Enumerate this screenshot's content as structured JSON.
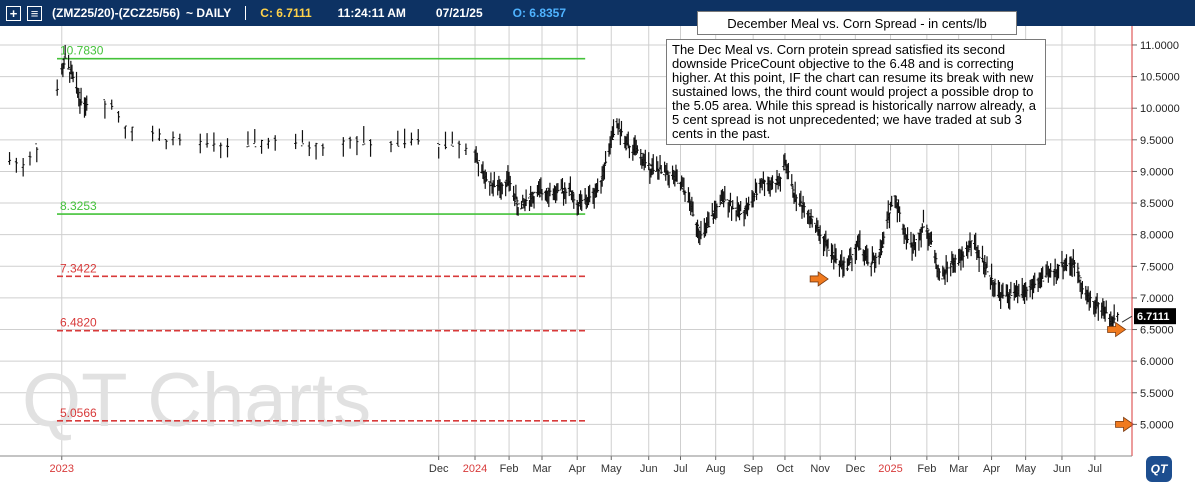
{
  "toolbar": {
    "add_icon": "plus-icon",
    "menu_icon": "menu-icon",
    "symbol": "(ZMZ25/20)-(ZCZ25/56)",
    "period": "~ DAILY",
    "close_label": "C: 6.7111",
    "time": "11:24:11 AM",
    "date": "07/21/25",
    "open_label": "O: 6.8357"
  },
  "annotation": {
    "title": "December Meal vs. Corn Spread - in cents/lb",
    "text": "The Dec Meal vs. Corn protein spread satisfied its second downside PriceCount objective to the 6.48 and is correcting higher.  At this point, IF the chart can resume its break with new sustained lows, the third count would project a possible drop to the 5.05 area.  While this spread is historically narrow already, a 5 cent spread is not unprecedented; we have traded at sub 3 cents in the past."
  },
  "watermark": "QT Charts",
  "logo_text": "QT",
  "colors": {
    "toolbar_bg": "#0d3263",
    "close": "#ffd24a",
    "open": "#4fb3ff",
    "green_level": "#44c23a",
    "red_level": "#d83a3a",
    "arrow": "#f07a1e",
    "last_price_bg": "#000000"
  },
  "chart_data": {
    "type": "bar",
    "subtype": "ohlc",
    "ylim": [
      4.5,
      11.3
    ],
    "y_ticks": [
      "11.0000",
      "10.5000",
      "10.0000",
      "9.5000",
      "9.0000",
      "8.5000",
      "8.0000",
      "7.5000",
      "7.0000",
      "6.5000",
      "6.0000",
      "5.5000",
      "5.0000"
    ],
    "x_ticks": [
      {
        "label": "2023",
        "date": "2023-01-03",
        "year": true
      },
      {
        "label": "Dec",
        "date": "2023-12-01",
        "year": false
      },
      {
        "label": "2024",
        "date": "2024-01-02",
        "year": true
      },
      {
        "label": "Feb",
        "date": "2024-02-01",
        "year": false
      },
      {
        "label": "Mar",
        "date": "2024-03-01",
        "year": false
      },
      {
        "label": "Apr",
        "date": "2024-04-01",
        "year": false
      },
      {
        "label": "May",
        "date": "2024-05-01",
        "year": false
      },
      {
        "label": "Jun",
        "date": "2024-06-03",
        "year": false
      },
      {
        "label": "Jul",
        "date": "2024-07-01",
        "year": false
      },
      {
        "label": "Aug",
        "date": "2024-08-01",
        "year": false
      },
      {
        "label": "Sep",
        "date": "2024-09-03",
        "year": false
      },
      {
        "label": "Oct",
        "date": "2024-10-01",
        "year": false
      },
      {
        "label": "Nov",
        "date": "2024-11-01",
        "year": false
      },
      {
        "label": "Dec",
        "date": "2024-12-02",
        "year": false
      },
      {
        "label": "2025",
        "date": "2025-01-02",
        "year": true
      },
      {
        "label": "Feb",
        "date": "2025-02-03",
        "year": false
      },
      {
        "label": "Mar",
        "date": "2025-03-03",
        "year": false
      },
      {
        "label": "Apr",
        "date": "2025-04-01",
        "year": false
      },
      {
        "label": "May",
        "date": "2025-05-01",
        "year": false
      },
      {
        "label": "Jun",
        "date": "2025-06-02",
        "year": false
      },
      {
        "label": "Jul",
        "date": "2025-07-01",
        "year": false
      }
    ],
    "levels": [
      {
        "label": "10.7830",
        "value": 10.783,
        "color": "green",
        "style": "solid",
        "end_date": "2024-04-01"
      },
      {
        "label": "8.3253",
        "value": 8.3253,
        "color": "green",
        "style": "solid",
        "end_date": "2024-04-01"
      },
      {
        "label": "7.3422",
        "value": 7.3422,
        "color": "red",
        "style": "dashed",
        "end_date": "2024-04-01"
      },
      {
        "label": "6.4820",
        "value": 6.482,
        "color": "red",
        "style": "dashed",
        "end_date": "2024-04-01"
      },
      {
        "label": "5.0566",
        "value": 5.0566,
        "color": "red",
        "style": "dashed",
        "end_date": "2024-04-01"
      }
    ],
    "arrows": [
      {
        "date": "2024-11-01",
        "value": 7.3
      },
      {
        "date": "2025-07-21",
        "value": 6.5
      },
      {
        "date": "2025-07-28",
        "value": 5.0
      }
    ],
    "last_price": {
      "label": "6.7111",
      "value": 6.7111
    },
    "series": [
      {
        "anchors": [
          [
            "2022-11-15",
            9.2
          ],
          [
            "2022-12-01",
            9.1
          ],
          [
            "2022-12-20",
            9.6
          ],
          [
            "2023-01-02",
            10.5
          ],
          [
            "2023-01-06",
            10.8
          ],
          [
            "2023-01-20",
            10.1
          ],
          [
            "2023-02-15",
            10.1
          ],
          [
            "2023-03-01",
            9.7
          ],
          [
            "2023-04-10",
            9.5
          ],
          [
            "2023-05-15",
            9.4
          ],
          [
            "2023-06-15",
            9.4
          ],
          [
            "2023-07-15",
            9.5
          ],
          [
            "2023-08-15",
            9.4
          ],
          [
            "2023-09-15",
            9.5
          ],
          [
            "2023-10-15",
            9.4
          ],
          [
            "2023-11-15",
            9.5
          ],
          [
            "2023-12-01",
            9.4
          ],
          [
            "2023-12-15",
            9.45
          ],
          [
            "2024-01-02",
            9.3
          ],
          [
            "2024-01-08",
            8.95
          ],
          [
            "2024-01-20",
            8.75
          ],
          [
            "2024-02-01",
            8.85
          ],
          [
            "2024-02-10",
            8.4
          ],
          [
            "2024-02-20",
            8.6
          ],
          [
            "2024-03-05",
            8.7
          ],
          [
            "2024-03-15",
            8.65
          ],
          [
            "2024-03-25",
            8.75
          ],
          [
            "2024-04-01",
            8.45
          ],
          [
            "2024-04-10",
            8.55
          ],
          [
            "2024-04-20",
            8.75
          ],
          [
            "2024-05-01",
            9.5
          ],
          [
            "2024-05-06",
            9.75
          ],
          [
            "2024-05-15",
            9.4
          ],
          [
            "2024-05-25",
            9.3
          ],
          [
            "2024-06-01",
            9.1
          ],
          [
            "2024-06-15",
            9.0
          ],
          [
            "2024-06-25",
            8.9
          ],
          [
            "2024-07-05",
            8.7
          ],
          [
            "2024-07-20",
            7.95
          ],
          [
            "2024-08-01",
            8.4
          ],
          [
            "2024-08-10",
            8.6
          ],
          [
            "2024-08-20",
            8.35
          ],
          [
            "2024-08-31",
            8.45
          ],
          [
            "2024-09-10",
            8.85
          ],
          [
            "2024-09-20",
            8.8
          ],
          [
            "2024-09-28",
            8.85
          ],
          [
            "2024-10-01",
            9.15
          ],
          [
            "2024-10-10",
            8.6
          ],
          [
            "2024-10-20",
            8.4
          ],
          [
            "2024-11-01",
            8.0
          ],
          [
            "2024-11-15",
            7.6
          ],
          [
            "2024-11-25",
            7.5
          ],
          [
            "2024-12-05",
            7.85
          ],
          [
            "2024-12-15",
            7.5
          ],
          [
            "2024-12-25",
            7.75
          ],
          [
            "2025-01-02",
            8.45
          ],
          [
            "2025-01-06",
            8.6
          ],
          [
            "2025-01-15",
            8.0
          ],
          [
            "2025-01-22",
            7.8
          ],
          [
            "2025-02-01",
            8.2
          ],
          [
            "2025-02-08",
            7.8
          ],
          [
            "2025-02-15",
            7.3
          ],
          [
            "2025-02-25",
            7.55
          ],
          [
            "2025-03-05",
            7.6
          ],
          [
            "2025-03-15",
            7.9
          ],
          [
            "2025-03-25",
            7.55
          ],
          [
            "2025-04-01",
            7.3
          ],
          [
            "2025-04-08",
            7.05
          ],
          [
            "2025-04-20",
            7.05
          ],
          [
            "2025-05-01",
            7.1
          ],
          [
            "2025-05-15",
            7.3
          ],
          [
            "2025-05-25",
            7.4
          ],
          [
            "2025-06-05",
            7.55
          ],
          [
            "2025-06-15",
            7.5
          ],
          [
            "2025-06-22",
            7.05
          ],
          [
            "2025-07-01",
            6.9
          ],
          [
            "2025-07-10",
            6.8
          ],
          [
            "2025-07-15",
            6.62
          ],
          [
            "2025-07-21",
            6.71
          ]
        ]
      }
    ]
  }
}
